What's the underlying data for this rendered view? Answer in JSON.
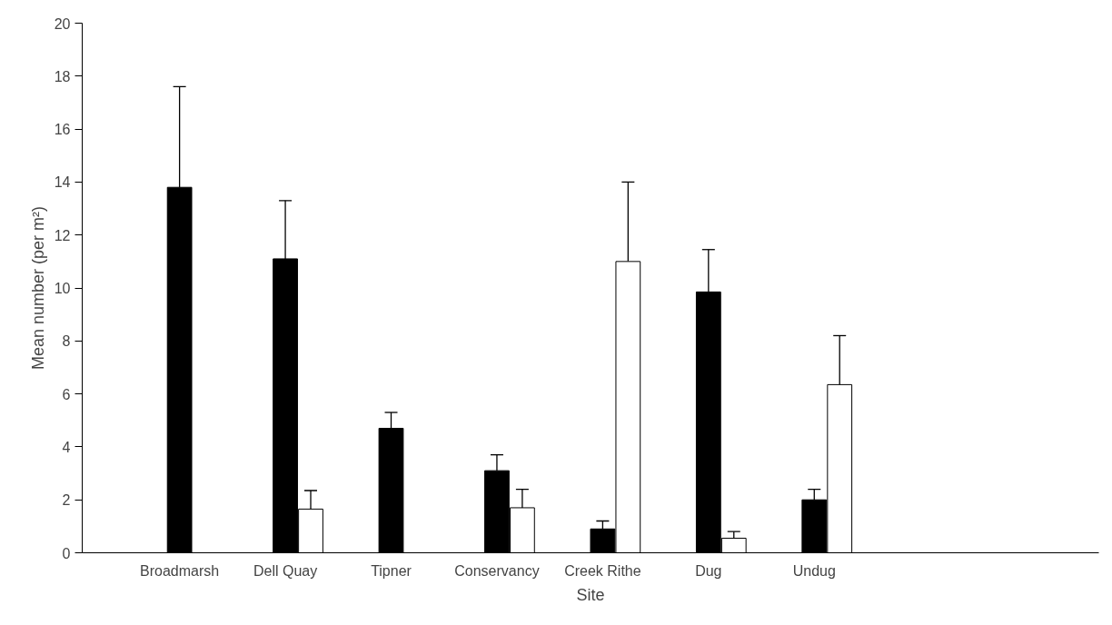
{
  "chart_data": {
    "type": "bar",
    "xlabel": "Site",
    "ylabel": "Mean number (per m²)",
    "categories": [
      "Broadmarsh",
      "Dell Quay",
      "Tipner",
      "Conservancy",
      "Creek Rithe",
      "Dug",
      "Undug"
    ],
    "series": [
      {
        "color": "#000000",
        "values": [
          13.8,
          11.1,
          4.7,
          3.1,
          0.9,
          9.85,
          2.0
        ],
        "errors": [
          [
            13.8,
            17.6
          ],
          [
            11.1,
            13.3
          ],
          [
            4.7,
            5.3
          ],
          [
            3.1,
            3.7
          ],
          [
            0.9,
            1.2
          ],
          [
            9.85,
            11.45
          ],
          [
            2.0,
            2.4
          ]
        ]
      },
      {
        "color": "#ffffff",
        "values": [
          null,
          1.65,
          null,
          1.7,
          11.0,
          0.55,
          6.35
        ],
        "errors": [
          null,
          [
            1.65,
            2.35
          ],
          null,
          [
            1.7,
            2.4
          ],
          [
            11.0,
            14.0
          ],
          [
            0.55,
            0.8
          ],
          [
            6.35,
            8.2
          ]
        ]
      }
    ],
    "ylim": [
      0,
      20
    ],
    "yticks": [
      0,
      2,
      4,
      6,
      8,
      10,
      12,
      14,
      16,
      18,
      20
    ],
    "grid": false
  }
}
